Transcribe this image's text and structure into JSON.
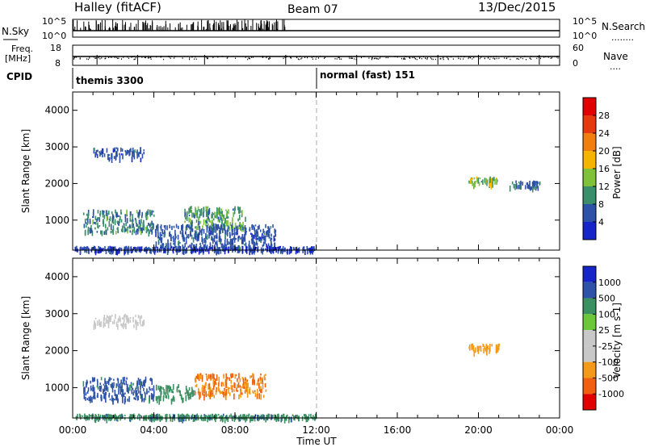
{
  "header": {
    "station": "Halley (fitACF)",
    "beam": "Beam 07",
    "date": "13/Dec/2015"
  },
  "top_panels": {
    "nsky": {
      "label": "N.Sky",
      "y_top": "10^5",
      "y_bottom": "10^0"
    },
    "nsearch": {
      "label": "N.Search",
      "y_top": "10^5",
      "y_bottom": "10^0",
      "dots": "........"
    },
    "freq": {
      "label_line1": "Freq.",
      "label_line2": "[MHz]",
      "y_top": "18",
      "y_bottom": "8"
    },
    "nave": {
      "label": "Nave",
      "y_top": "60",
      "y_bottom": "0",
      "dots": "...."
    },
    "cpid": {
      "label": "CPID",
      "mode1": "themis 3300",
      "mode2": "normal (fast) 151"
    }
  },
  "x_axis": {
    "label": "Time UT",
    "ticks": [
      "00:00",
      "04:00",
      "08:00",
      "12:00",
      "16:00",
      "20:00",
      "00:00"
    ]
  },
  "colors": {
    "power": [
      "#1525c8",
      "#2d52a8",
      "#3a8f6a",
      "#7fc23a",
      "#f5b400",
      "#f07f10",
      "#e53a10",
      "#e00000"
    ],
    "velocity": [
      "#e00000",
      "#f06010",
      "#f39a1a",
      "#c8c8c8",
      "#c8c8c8",
      "#6cc83a",
      "#3a9060",
      "#2d52a8",
      "#1525c8"
    ]
  },
  "chart_data": [
    {
      "type": "heatmap",
      "title": "",
      "xlabel": "",
      "ylabel": "Slant Range [km]",
      "ylim": [
        180,
        4500
      ],
      "xlim_hours": [
        0,
        24
      ],
      "yticks": [
        "1000",
        "2000",
        "3000",
        "4000"
      ],
      "colorbar": {
        "label": "Power [dB]",
        "ticks": [
          "4",
          "8",
          "12",
          "16",
          "20",
          "24",
          "28"
        ],
        "range": [
          0,
          32
        ]
      },
      "regions": [
        {
          "t_start": 0.1,
          "t_end": 12.0,
          "range_start": 200,
          "range_end": 300,
          "value": 4
        },
        {
          "t_start": 1.0,
          "t_end": 3.5,
          "range_start": 2700,
          "range_end": 3000,
          "value": 6
        },
        {
          "t_start": 0.5,
          "t_end": 4.0,
          "range_start": 700,
          "range_end": 1300,
          "value": 9
        },
        {
          "t_start": 5.5,
          "t_end": 8.5,
          "range_start": 800,
          "range_end": 1400,
          "value": 11
        },
        {
          "t_start": 4.0,
          "t_end": 10.0,
          "range_start": 300,
          "range_end": 900,
          "value": 6
        },
        {
          "t_start": 19.5,
          "t_end": 21.0,
          "range_start": 2000,
          "range_end": 2200,
          "value": 14
        },
        {
          "t_start": 21.5,
          "t_end": 23.0,
          "range_start": 1900,
          "range_end": 2100,
          "value": 7
        }
      ]
    },
    {
      "type": "heatmap",
      "title": "",
      "xlabel": "Time UT",
      "ylabel": "Slant Range [km]",
      "ylim": [
        180,
        4500
      ],
      "xlim_hours": [
        0,
        24
      ],
      "yticks": [
        "1000",
        "2000",
        "3000",
        "4000"
      ],
      "colorbar": {
        "label": "Velocity [m s-1]",
        "ticks": [
          "1000",
          "500",
          "100",
          "25",
          "-25",
          "-100",
          "-500",
          "-1000"
        ]
      },
      "regions": [
        {
          "t_start": 0.1,
          "t_end": 12.0,
          "range_start": 200,
          "range_end": 300,
          "value": 80
        },
        {
          "t_start": 0.5,
          "t_end": 4.0,
          "range_start": 700,
          "range_end": 1300,
          "value": 150
        },
        {
          "t_start": 4.0,
          "t_end": 6.0,
          "range_start": 700,
          "range_end": 1100,
          "value": 60
        },
        {
          "t_start": 6.0,
          "t_end": 9.5,
          "range_start": 800,
          "range_end": 1400,
          "value": -100
        },
        {
          "t_start": 1.0,
          "t_end": 3.5,
          "range_start": 2700,
          "range_end": 3000,
          "value": 0
        },
        {
          "t_start": 19.5,
          "t_end": 21.0,
          "range_start": 2000,
          "range_end": 2200,
          "value": -60
        }
      ]
    }
  ]
}
